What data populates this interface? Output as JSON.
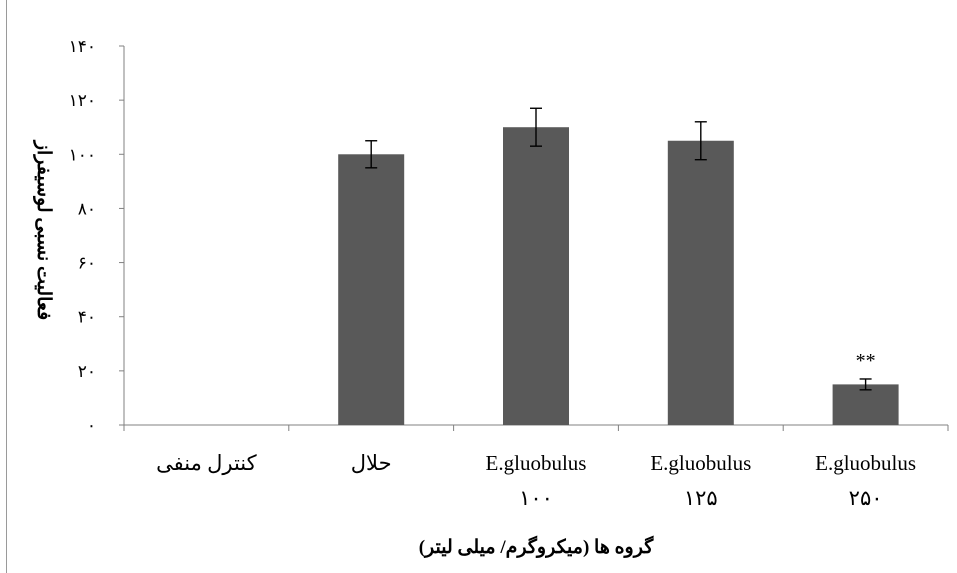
{
  "chart_data": {
    "type": "bar",
    "title": "",
    "xlabel": "گروه ها (میکروگرم/ میلی لیتر)",
    "ylabel": "فعالیت نسبی لوسیفراز",
    "ylim": [
      0,
      140
    ],
    "yticks": [
      {
        "value": 0,
        "label": "۰"
      },
      {
        "value": 20,
        "label": "۲۰"
      },
      {
        "value": 40,
        "label": "۴۰"
      },
      {
        "value": 60,
        "label": "۶۰"
      },
      {
        "value": 80,
        "label": "۸۰"
      },
      {
        "value": 100,
        "label": "۱۰۰"
      },
      {
        "value": 120,
        "label": "۱۲۰"
      },
      {
        "value": 140,
        "label": "۱۴۰"
      }
    ],
    "categories": [
      {
        "line1": "کنترل منفی",
        "line2": ""
      },
      {
        "line1": "حلال",
        "line2": ""
      },
      {
        "line1": "E.gluobulus",
        "line2": "۱۰۰"
      },
      {
        "line1": "E.gluobulus",
        "line2": "۱۲۵"
      },
      {
        "line1": "E.gluobulus",
        "line2": "۲۵۰"
      }
    ],
    "values": [
      0,
      100,
      110,
      105,
      15
    ],
    "errors": [
      0,
      5,
      7,
      7,
      2
    ],
    "annotations": [
      "",
      "",
      "",
      "",
      "**"
    ],
    "bar_color": "#595959",
    "grid": false
  }
}
